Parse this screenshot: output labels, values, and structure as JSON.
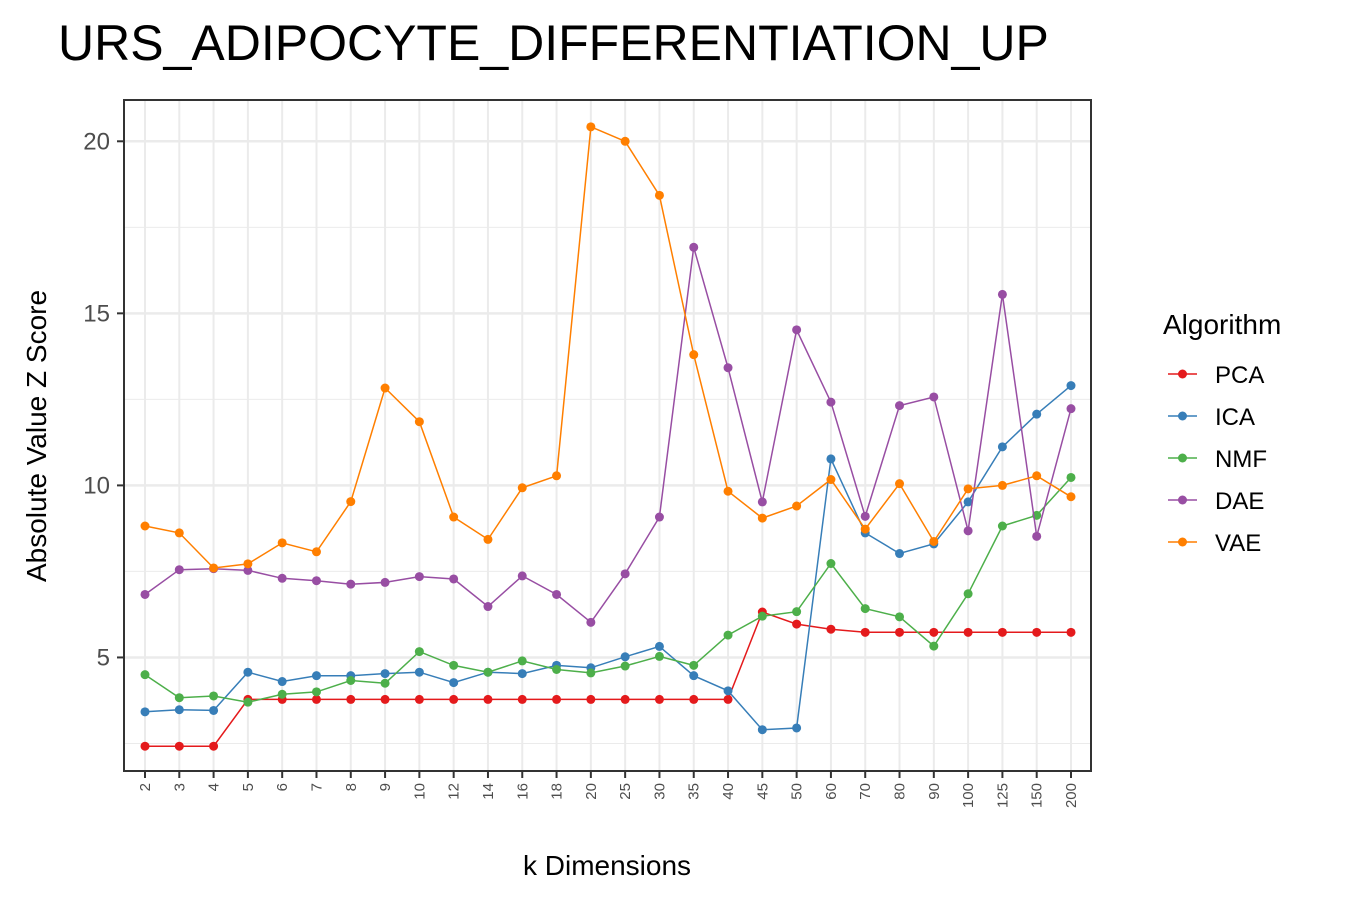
{
  "chart_data": {
    "type": "line",
    "title": "URS_ADIPOCYTE_DIFFERENTIATION_UP",
    "xlabel": "k Dimensions",
    "ylabel": "Absolute Value Z Score",
    "categories": [
      "2",
      "3",
      "4",
      "5",
      "6",
      "7",
      "8",
      "9",
      "10",
      "12",
      "14",
      "16",
      "18",
      "20",
      "25",
      "30",
      "35",
      "40",
      "45",
      "50",
      "60",
      "70",
      "80",
      "90",
      "100",
      "125",
      "150",
      "200"
    ],
    "ylim": [
      1.7,
      21.2
    ],
    "yticks": [
      5,
      10,
      15,
      20
    ],
    "grid": true,
    "legend": {
      "title": "Algorithm",
      "position": "right"
    },
    "series": [
      {
        "name": "PCA",
        "color": "#e41a1c",
        "values": [
          2.42,
          2.42,
          2.42,
          3.78,
          3.78,
          3.78,
          3.78,
          3.78,
          3.78,
          3.78,
          3.78,
          3.78,
          3.78,
          3.78,
          3.78,
          3.78,
          3.78,
          3.78,
          6.32,
          5.97,
          5.82,
          5.73,
          5.73,
          5.73,
          5.73,
          5.73,
          5.73,
          5.73
        ]
      },
      {
        "name": "ICA",
        "color": "#377eb8",
        "values": [
          3.42,
          3.48,
          3.46,
          4.57,
          4.3,
          4.47,
          4.47,
          4.53,
          4.57,
          4.27,
          4.57,
          4.53,
          4.77,
          4.7,
          5.02,
          5.32,
          4.47,
          4.03,
          2.9,
          2.95,
          10.77,
          8.62,
          8.02,
          8.3,
          9.52,
          11.12,
          12.07,
          12.9
        ]
      },
      {
        "name": "NMF",
        "color": "#4daf4a",
        "values": [
          4.5,
          3.83,
          3.88,
          3.7,
          3.93,
          4.0,
          4.33,
          4.25,
          5.17,
          4.77,
          4.57,
          4.9,
          4.65,
          4.55,
          4.75,
          5.03,
          4.77,
          5.65,
          6.2,
          6.33,
          7.73,
          6.42,
          6.18,
          5.33,
          6.85,
          8.82,
          9.13,
          10.23
        ]
      },
      {
        "name": "DAE",
        "color": "#984ea3",
        "values": [
          6.83,
          7.55,
          7.58,
          7.53,
          7.3,
          7.23,
          7.13,
          7.18,
          7.35,
          7.28,
          6.48,
          7.37,
          6.83,
          6.02,
          7.43,
          9.08,
          16.92,
          13.42,
          9.52,
          14.52,
          12.42,
          9.1,
          12.32,
          12.57,
          8.68,
          15.55,
          8.52,
          12.23
        ]
      },
      {
        "name": "VAE",
        "color": "#ff7f00",
        "values": [
          8.82,
          8.62,
          7.6,
          7.72,
          8.33,
          8.07,
          9.53,
          12.83,
          11.85,
          9.08,
          8.43,
          9.93,
          10.28,
          20.42,
          20.0,
          18.43,
          13.8,
          9.83,
          9.05,
          9.4,
          10.17,
          8.73,
          10.05,
          8.37,
          9.9,
          10.0,
          10.28,
          9.67
        ]
      }
    ]
  }
}
